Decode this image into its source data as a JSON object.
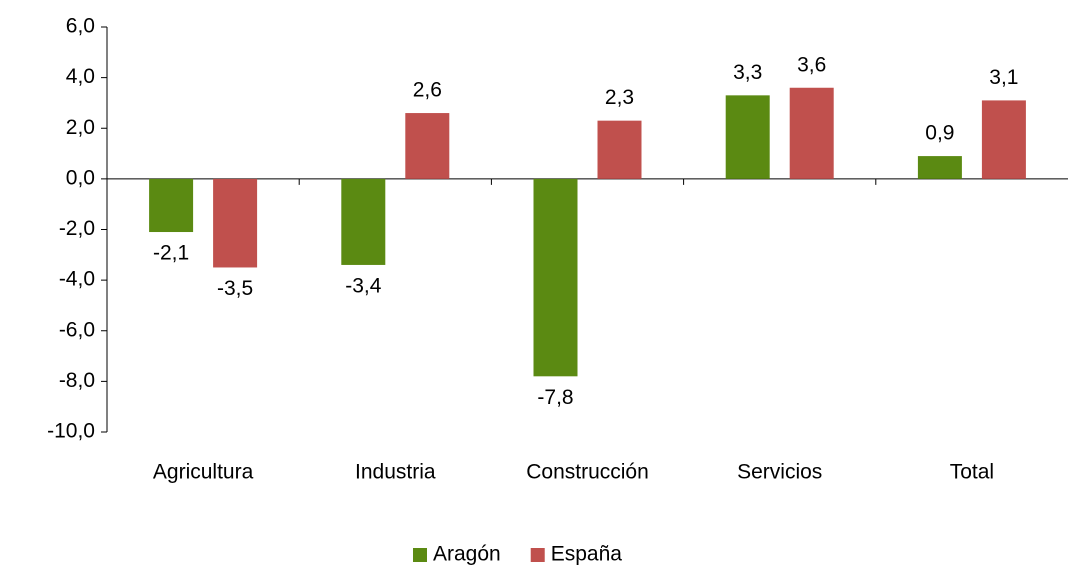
{
  "chart_data": {
    "type": "bar",
    "categories": [
      "Agricultura",
      "Industria",
      "Construcción",
      "Servicios",
      "Total"
    ],
    "series": [
      {
        "name": "Aragón",
        "color": "#5b8a12",
        "values": [
          -2.1,
          -3.4,
          -7.8,
          3.3,
          0.9
        ],
        "value_labels": [
          "-2,1",
          "-3,4",
          "-7,8",
          "3,3",
          "0,9"
        ]
      },
      {
        "name": "España",
        "color": "#c0504d",
        "values": [
          -3.5,
          2.6,
          2.3,
          3.6,
          3.1
        ],
        "value_labels": [
          "-3,5",
          "2,6",
          "2,3",
          "3,6",
          "3,1"
        ]
      }
    ],
    "ylim": [
      -10,
      6
    ],
    "yticks": [
      {
        "value": -10,
        "label": "-10,0"
      },
      {
        "value": -8,
        "label": "-8,0"
      },
      {
        "value": -6,
        "label": "-6,0"
      },
      {
        "value": -4,
        "label": "-4,0"
      },
      {
        "value": -2,
        "label": "-2,0"
      },
      {
        "value": 0,
        "label": "0,0"
      },
      {
        "value": 2,
        "label": "2,0"
      },
      {
        "value": 4,
        "label": "4,0"
      },
      {
        "value": 6,
        "label": "6,0"
      }
    ],
    "legend": "bottom",
    "grid": false
  }
}
